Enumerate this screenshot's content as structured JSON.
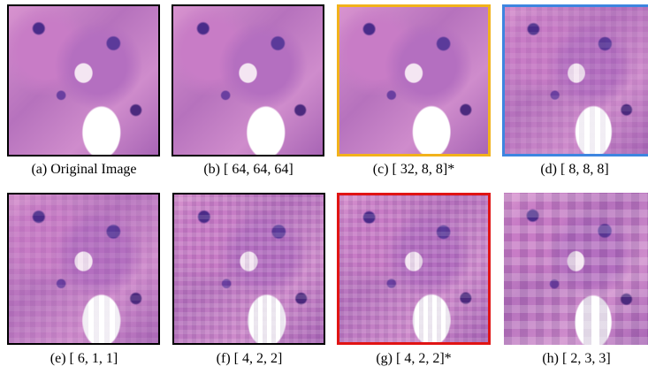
{
  "panels": [
    {
      "caption": "(a) Original Image"
    },
    {
      "caption": "(b) [ 64, 64, 64]"
    },
    {
      "caption": "(c) [ 32, 8, 8]*"
    },
    {
      "caption": "(d) [ 8, 8, 8]"
    },
    {
      "caption": "(e) [ 6, 1, 1]"
    },
    {
      "caption": "(f) [ 4, 2, 2]"
    },
    {
      "caption": "(g) [ 4, 2, 2]*"
    },
    {
      "caption": "(h) [ 2, 3, 3]"
    }
  ]
}
